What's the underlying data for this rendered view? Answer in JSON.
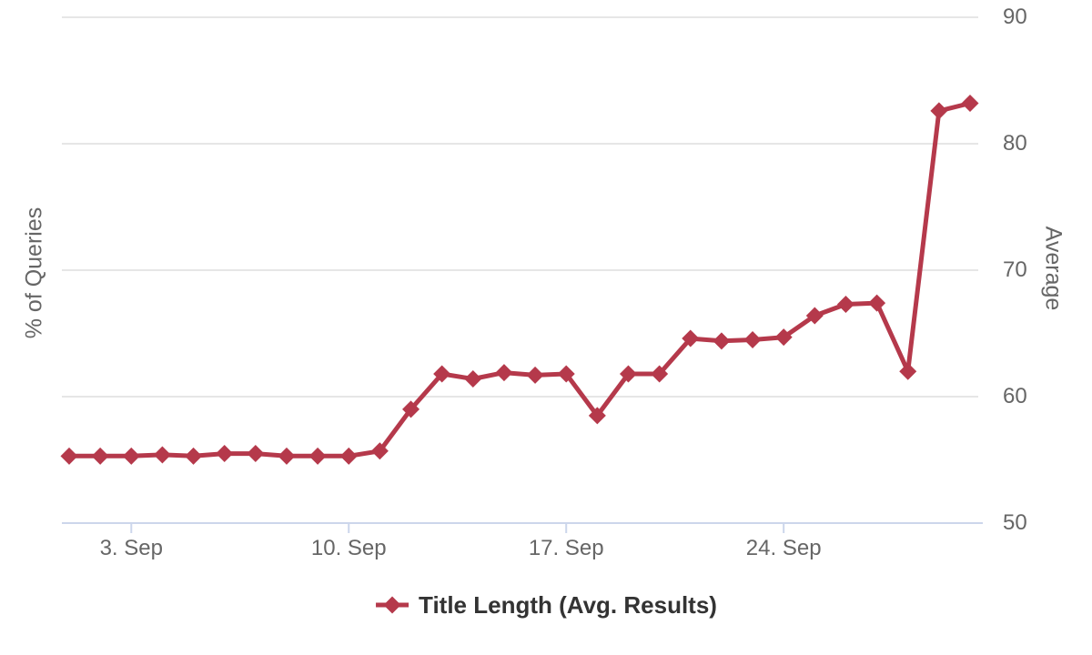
{
  "chart_data": {
    "type": "line",
    "title": "",
    "x_days": [
      1,
      2,
      3,
      4,
      5,
      6,
      7,
      8,
      9,
      10,
      11,
      12,
      13,
      14,
      15,
      16,
      17,
      18,
      19,
      20,
      21,
      22,
      23,
      24,
      25,
      26,
      27,
      28,
      29,
      30
    ],
    "x_month": "Sep",
    "x_tick_labels": [
      {
        "day": 3,
        "label": "3. Sep"
      },
      {
        "day": 10,
        "label": "10. Sep"
      },
      {
        "day": 17,
        "label": "17. Sep"
      },
      {
        "day": 24,
        "label": "24. Sep"
      }
    ],
    "series": [
      {
        "name": "Title Length (Avg. Results)",
        "color": "#b5394b",
        "marker": "diamond",
        "values": [
          55.3,
          55.3,
          55.3,
          55.4,
          55.3,
          55.5,
          55.5,
          55.3,
          55.3,
          55.3,
          55.7,
          59.0,
          61.8,
          61.4,
          61.9,
          61.7,
          61.8,
          58.5,
          61.8,
          61.8,
          64.6,
          64.4,
          64.5,
          64.7,
          66.4,
          67.3,
          67.4,
          62.0,
          82.6,
          83.2
        ]
      }
    ],
    "y_axis_left": {
      "title": "% of Queries"
    },
    "y_axis_right": {
      "title": "Average",
      "min": 50,
      "max": 90,
      "ticks": [
        50,
        60,
        70,
        80,
        90
      ]
    },
    "grid": "horizontal-only",
    "legend_position": "bottom-center",
    "colors": {
      "gridline": "#e6e6e6",
      "axis_line": "#ccd6eb",
      "tick_label": "#666666",
      "axis_title": "#666666",
      "legend_text": "#333333",
      "background": "#ffffff"
    }
  }
}
